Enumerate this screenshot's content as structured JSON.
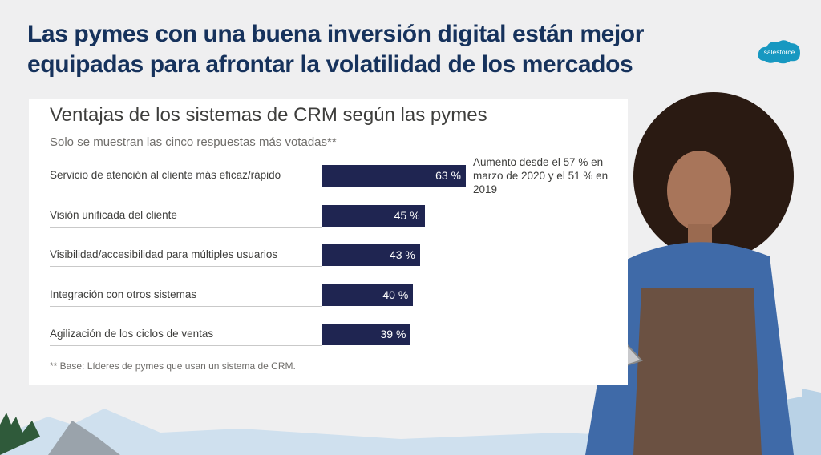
{
  "slide": {
    "title_line1": "Las pymes con una buena inversión digital están mejor",
    "title_line2": "equipadas para afrontar la volatilidad de los mercados",
    "logo_text": "salesforce"
  },
  "chart_data": {
    "type": "bar",
    "orientation": "horizontal",
    "title": "Ventajas de los sistemas de CRM según las pymes",
    "subtitle": "Solo se muestran las cinco respuestas más votadas**",
    "categories": [
      "Servicio de atención al cliente más eficaz/rápido",
      "Visión unificada del cliente",
      "Visibilidad/accesibilidad para múltiples usuarios",
      "Integración con otros sistemas",
      "Agilización de los ciclos de ventas"
    ],
    "values": [
      63,
      45,
      43,
      40,
      39
    ],
    "value_labels": [
      "63 %",
      "45 %",
      "43 %",
      "40 %",
      "39 %"
    ],
    "annotation": "Aumento desde el 57 % en marzo de 2020 y el 51 % en 2019",
    "footnote": "** Base: Líderes de pymes que usan un sistema de CRM.",
    "bar_color": "#1f2551",
    "grid": false
  }
}
